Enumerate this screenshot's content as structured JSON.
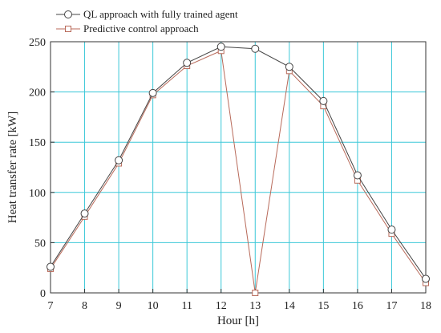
{
  "chart_data": {
    "type": "line",
    "xlabel": "Hour [h]",
    "ylabel": "Heat transfer rate [kW]",
    "xlim": [
      7,
      18
    ],
    "ylim": [
      0,
      250
    ],
    "x_ticks": [
      7,
      8,
      9,
      10,
      11,
      12,
      13,
      14,
      15,
      16,
      17,
      18
    ],
    "y_ticks": [
      0,
      50,
      100,
      150,
      200,
      250
    ],
    "grid": true,
    "grid_color": "#3cc8d8",
    "legend_position": "top-left",
    "x": [
      7,
      8,
      9,
      10,
      11,
      12,
      13,
      14,
      15,
      16,
      17,
      18
    ],
    "series": [
      {
        "name": "QL approach with fully trained agent",
        "marker": "circle",
        "color": "#444444",
        "values": [
          26,
          79,
          132,
          199,
          229,
          245,
          243,
          225,
          191,
          117,
          63,
          14
        ]
      },
      {
        "name": "Predictive control approach",
        "marker": "square",
        "color": "#b86a5a",
        "values": [
          24,
          76,
          129,
          197,
          226,
          241,
          0,
          221,
          186,
          112,
          59,
          10
        ]
      }
    ]
  }
}
